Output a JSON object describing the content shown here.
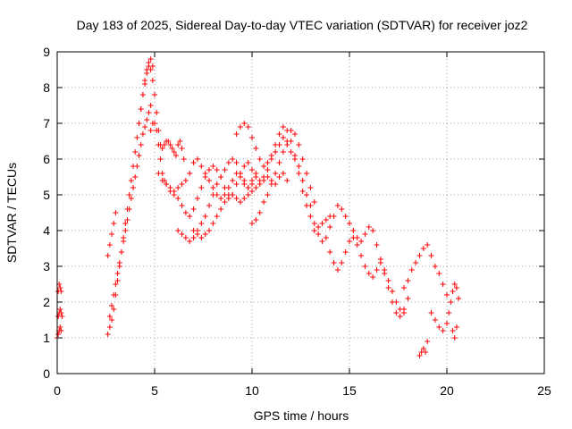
{
  "chart_data": {
    "type": "scatter",
    "title": "Day 183 of 2025, Sidereal Day-to-day VTEC variation (SDTVAR) for receiver joz2",
    "xlabel": "GPS time / hours",
    "ylabel": "SDTVAR / TECUs",
    "xlim": [
      0,
      25
    ],
    "ylim": [
      0,
      9
    ],
    "xticks": [
      0,
      5,
      10,
      15,
      20,
      25
    ],
    "yticks": [
      0,
      1,
      2,
      3,
      4,
      5,
      6,
      7,
      8,
      9
    ],
    "grid": true,
    "marker": "+",
    "series": [
      {
        "name": "SDTVAR",
        "color": "#ff0000",
        "x": [
          0.0,
          0.05,
          0.1,
          0.15,
          0.2,
          0.05,
          0.1,
          0.15,
          0.2,
          0.25,
          0.05,
          0.1,
          0.15,
          0.2,
          2.6,
          2.7,
          2.8,
          2.9,
          3.0,
          3.1,
          3.2,
          3.3,
          3.4,
          3.5,
          3.6,
          3.7,
          3.8,
          3.9,
          4.0,
          4.1,
          4.2,
          4.3,
          4.4,
          4.5,
          4.6,
          4.7,
          4.8,
          4.9,
          2.7,
          2.8,
          2.9,
          3.0,
          3.1,
          3.2,
          3.3,
          3.4,
          3.5,
          3.6,
          3.7,
          3.8,
          3.9,
          4.0,
          4.1,
          4.2,
          4.3,
          4.4,
          4.5,
          4.6,
          4.7,
          4.8,
          2.6,
          2.7,
          2.8,
          2.9,
          3.0,
          4.2,
          4.3,
          4.4,
          4.5,
          4.6,
          4.7,
          4.8,
          4.9,
          5.0,
          5.1,
          5.2,
          5.3,
          5.4,
          5.5,
          5.6,
          5.7,
          5.8,
          5.9,
          6.0,
          6.1,
          6.2,
          6.3,
          6.4,
          6.5,
          4.8,
          4.9,
          5.0,
          5.1,
          5.2,
          5.3,
          5.4,
          5.5,
          5.6,
          5.8,
          6.0,
          6.2,
          6.4,
          6.6,
          6.8,
          7.0,
          7.2,
          7.4,
          7.6,
          7.8,
          8.0,
          8.2,
          8.4,
          8.6,
          8.8,
          9.0,
          9.2,
          9.4,
          9.6,
          9.8,
          10.0,
          5.2,
          5.4,
          5.6,
          5.8,
          6.0,
          6.2,
          6.4,
          6.6,
          6.8,
          7.0,
          7.2,
          7.4,
          7.6,
          7.8,
          8.0,
          8.2,
          8.4,
          8.6,
          8.8,
          9.0,
          9.2,
          9.4,
          9.6,
          9.8,
          10.0,
          10.2,
          10.4,
          10.6,
          10.8,
          11.0,
          11.2,
          11.4,
          11.6,
          11.8,
          12.0,
          12.2,
          12.4,
          12.6,
          12.8,
          13.0,
          6.2,
          6.4,
          6.6,
          6.8,
          7.0,
          7.2,
          7.4,
          7.6,
          7.8,
          8.0,
          8.2,
          8.4,
          8.6,
          8.8,
          9.0,
          9.2,
          9.4,
          9.6,
          9.8,
          10.0,
          10.2,
          7.0,
          7.2,
          7.4,
          7.6,
          7.8,
          8.0,
          8.2,
          8.4,
          8.6,
          8.8,
          9.0,
          9.2,
          9.4,
          9.6,
          9.8,
          10.0,
          10.2,
          10.4,
          10.6,
          10.8,
          11.0,
          11.2,
          11.4,
          11.6,
          11.8,
          9.2,
          9.4,
          9.6,
          9.8,
          10.0,
          10.2,
          10.4,
          10.6,
          10.8,
          11.0,
          11.2,
          11.4,
          11.6,
          11.8,
          12.0,
          12.2,
          12.4,
          12.6,
          12.8,
          13.0,
          13.2,
          13.4,
          13.6,
          13.8,
          14.0,
          10.0,
          10.2,
          10.4,
          10.6,
          10.8,
          11.0,
          11.2,
          11.4,
          11.6,
          11.8,
          12.0,
          12.2,
          12.4,
          12.6,
          12.8,
          13.0,
          13.2,
          13.2,
          13.4,
          13.6,
          13.8,
          14.0,
          14.2,
          14.4,
          14.6,
          14.8,
          15.0,
          15.2,
          15.4,
          15.6,
          15.8,
          16.0,
          16.2,
          16.4,
          16.6,
          16.8,
          17.0,
          17.2,
          17.4,
          17.6,
          17.8,
          18.0,
          14.0,
          14.2,
          14.4,
          14.6,
          14.8,
          15.0,
          15.2,
          15.4,
          15.6,
          15.8,
          16.0,
          16.2,
          16.4,
          16.6,
          16.8,
          17.0,
          17.2,
          17.4,
          17.6,
          17.8,
          17.8,
          18.0,
          18.2,
          18.4,
          18.6,
          18.8,
          19.0,
          19.2,
          19.4,
          19.6,
          19.8,
          20.0,
          18.6,
          18.7,
          18.8,
          18.9,
          19.0,
          19.2,
          19.4,
          19.6,
          19.8,
          20.0,
          20.0,
          20.1,
          20.2,
          20.3,
          20.4,
          20.5,
          20.6,
          20.3,
          20.4,
          20.5
        ],
        "y": [
          1.0,
          1.1,
          1.2,
          1.3,
          1.2,
          1.6,
          1.7,
          1.8,
          1.7,
          1.6,
          2.3,
          2.5,
          2.4,
          2.3,
          1.1,
          1.3,
          1.5,
          1.8,
          2.2,
          2.6,
          3.0,
          3.4,
          3.8,
          4.2,
          4.6,
          5.0,
          5.4,
          5.8,
          6.2,
          6.6,
          7.0,
          7.4,
          7.8,
          8.2,
          8.5,
          8.7,
          8.8,
          8.6,
          1.6,
          1.9,
          2.2,
          2.5,
          2.8,
          3.1,
          3.4,
          3.7,
          4.0,
          4.3,
          4.6,
          4.9,
          5.2,
          5.5,
          5.8,
          6.1,
          6.4,
          6.7,
          6.9,
          7.1,
          7.3,
          7.5,
          3.3,
          3.6,
          3.9,
          4.2,
          4.5,
          7.0,
          7.4,
          7.8,
          8.1,
          8.4,
          8.6,
          8.5,
          8.2,
          7.8,
          7.3,
          6.8,
          6.4,
          6.3,
          6.4,
          6.5,
          6.5,
          6.4,
          6.3,
          6.2,
          6.1,
          6.4,
          6.5,
          6.3,
          6.0,
          6.8,
          7.0,
          7.0,
          6.8,
          6.4,
          6.0,
          5.6,
          5.4,
          5.3,
          5.2,
          5.1,
          5.2,
          5.3,
          5.4,
          5.6,
          5.9,
          6.0,
          5.8,
          5.6,
          5.4,
          5.2,
          5.0,
          4.9,
          5.0,
          5.2,
          5.4,
          5.6,
          5.5,
          5.3,
          5.2,
          5.3,
          5.6,
          5.4,
          5.3,
          5.1,
          5.0,
          4.9,
          4.7,
          4.5,
          4.4,
          4.6,
          4.9,
          5.2,
          5.5,
          5.7,
          5.8,
          5.7,
          5.5,
          5.2,
          5.0,
          5.0,
          5.3,
          5.6,
          5.8,
          5.9,
          5.7,
          5.5,
          5.4,
          5.5,
          5.7,
          6.0,
          6.2,
          6.4,
          6.6,
          6.4,
          6.2,
          6.0,
          5.8,
          5.4,
          5.0,
          4.7,
          4.0,
          3.9,
          3.8,
          3.7,
          3.8,
          4.0,
          4.2,
          4.4,
          4.7,
          5.0,
          5.3,
          5.5,
          5.7,
          5.9,
          6.0,
          5.9,
          5.6,
          5.4,
          5.2,
          5.4,
          5.6,
          4.0,
          3.9,
          3.8,
          3.9,
          4.0,
          4.2,
          4.4,
          4.6,
          4.8,
          4.9,
          5.0,
          4.9,
          4.8,
          4.9,
          5.0,
          5.1,
          5.2,
          5.3,
          5.4,
          5.5,
          5.4,
          5.3,
          5.5,
          5.6,
          5.4,
          6.7,
          6.9,
          7.0,
          6.9,
          6.6,
          6.3,
          6.0,
          5.8,
          5.9,
          6.1,
          6.4,
          6.7,
          6.9,
          6.8,
          6.5,
          6.1,
          5.6,
          5.1,
          4.7,
          4.4,
          4.2,
          4.1,
          4.2,
          4.3,
          4.4,
          4.2,
          4.3,
          4.5,
          4.8,
          5.0,
          5.3,
          5.6,
          5.9,
          6.2,
          6.5,
          6.8,
          6.7,
          6.4,
          6.0,
          5.6,
          5.2,
          4.8,
          4.0,
          3.9,
          3.7,
          3.8,
          4.1,
          4.4,
          4.7,
          4.6,
          4.4,
          4.2,
          4.0,
          3.8,
          3.7,
          3.9,
          4.1,
          4.0,
          3.6,
          3.2,
          2.8,
          2.4,
          2.0,
          1.7,
          1.6,
          1.8,
          2.1,
          3.4,
          3.1,
          2.9,
          3.1,
          3.4,
          3.7,
          3.8,
          3.6,
          3.3,
          3.0,
          2.8,
          2.7,
          2.9,
          3.1,
          2.9,
          2.6,
          2.3,
          2.0,
          1.8,
          1.7,
          2.4,
          2.6,
          2.9,
          3.1,
          3.3,
          3.5,
          3.6,
          3.3,
          3.0,
          2.8,
          2.5,
          2.2,
          0.5,
          0.6,
          0.7,
          0.6,
          0.9,
          1.7,
          1.5,
          1.3,
          1.2,
          1.4,
          1.4,
          1.7,
          2.0,
          2.3,
          2.5,
          2.4,
          2.1,
          1.2,
          1.0,
          1.3
        ]
      }
    ]
  }
}
